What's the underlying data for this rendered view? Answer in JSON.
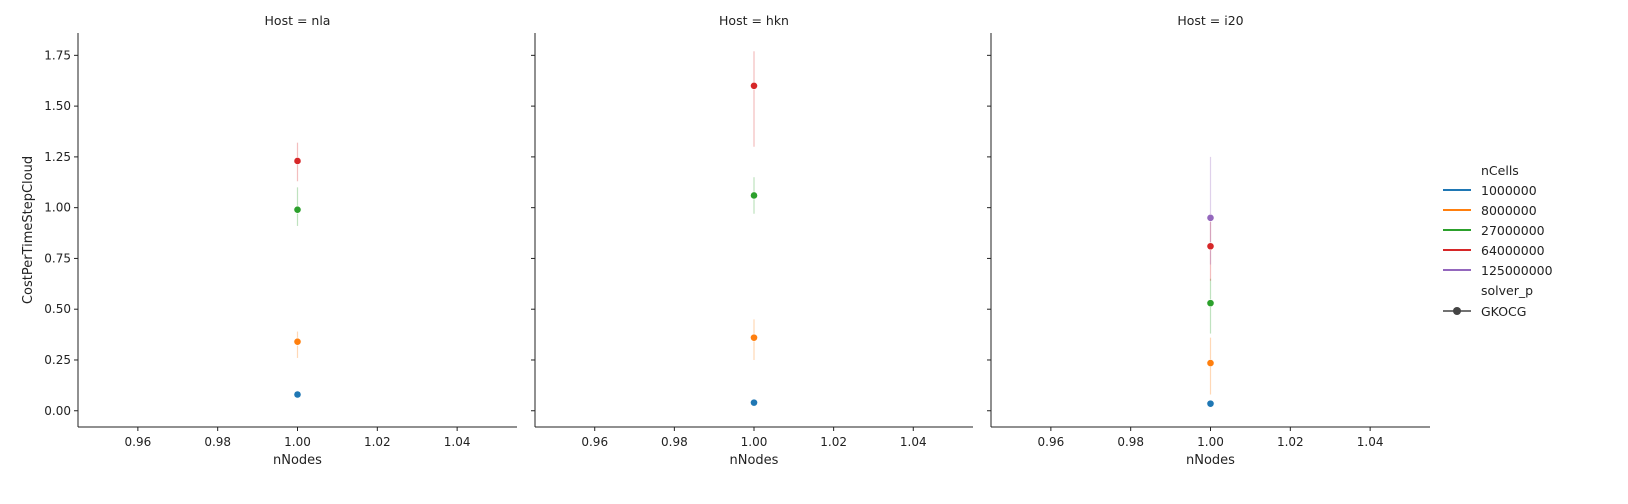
{
  "chart_data": {
    "type": "scatter",
    "facet_prefix": "Host = ",
    "facets": [
      {
        "host": "nla",
        "points": [
          {
            "ncells": "1000000",
            "y": 0.08,
            "ci": [
              0.07,
              0.09
            ]
          },
          {
            "ncells": "8000000",
            "y": 0.34,
            "ci": [
              0.26,
              0.39
            ]
          },
          {
            "ncells": "27000000",
            "y": 0.99,
            "ci": [
              0.91,
              1.1
            ]
          },
          {
            "ncells": "64000000",
            "y": 1.23,
            "ci": [
              1.13,
              1.32
            ]
          }
        ]
      },
      {
        "host": "hkn",
        "points": [
          {
            "ncells": "1000000",
            "y": 0.04,
            "ci": [
              0.035,
              0.045
            ]
          },
          {
            "ncells": "8000000",
            "y": 0.36,
            "ci": [
              0.25,
              0.45
            ]
          },
          {
            "ncells": "27000000",
            "y": 1.06,
            "ci": [
              0.97,
              1.15
            ]
          },
          {
            "ncells": "64000000",
            "y": 1.6,
            "ci": [
              1.3,
              1.77
            ]
          }
        ]
      },
      {
        "host": "i20",
        "points": [
          {
            "ncells": "1000000",
            "y": 0.035,
            "ci": [
              0.03,
              0.04
            ]
          },
          {
            "ncells": "8000000",
            "y": 0.235,
            "ci": [
              0.08,
              0.36
            ]
          },
          {
            "ncells": "27000000",
            "y": 0.53,
            "ci": [
              0.38,
              0.65
            ]
          },
          {
            "ncells": "64000000",
            "y": 0.81,
            "ci": [
              0.64,
              0.97
            ]
          },
          {
            "ncells": "125000000",
            "y": 0.95,
            "ci": [
              0.72,
              1.25
            ]
          }
        ]
      }
    ],
    "x_value": 1.0,
    "xlim": [
      0.945,
      1.055
    ],
    "xticks": [
      "0.96",
      "0.98",
      "1.00",
      "1.02",
      "1.04"
    ],
    "xtick_values": [
      0.96,
      0.98,
      1.0,
      1.02,
      1.04
    ],
    "ylim": [
      -0.08,
      1.86
    ],
    "yticks": [
      "0.00",
      "0.25",
      "0.50",
      "0.75",
      "1.00",
      "1.25",
      "1.50",
      "1.75"
    ],
    "ytick_values": [
      0,
      0.25,
      0.5,
      0.75,
      1.0,
      1.25,
      1.5,
      1.75
    ],
    "xlabel": "nNodes",
    "ylabel": "CostPerTimeStepCloud",
    "grid": false,
    "legend": {
      "placement": "right",
      "hue_title": "nCells",
      "hue_entries": [
        {
          "label": "1000000",
          "color": "#1f77b4"
        },
        {
          "label": "8000000",
          "color": "#ff7f0e"
        },
        {
          "label": "27000000",
          "color": "#2ca02c"
        },
        {
          "label": "64000000",
          "color": "#d62728"
        },
        {
          "label": "125000000",
          "color": "#9467bd"
        }
      ],
      "style_title": "solver_p",
      "style_entries": [
        {
          "label": "GKOCG",
          "color": "#444444"
        }
      ]
    }
  }
}
